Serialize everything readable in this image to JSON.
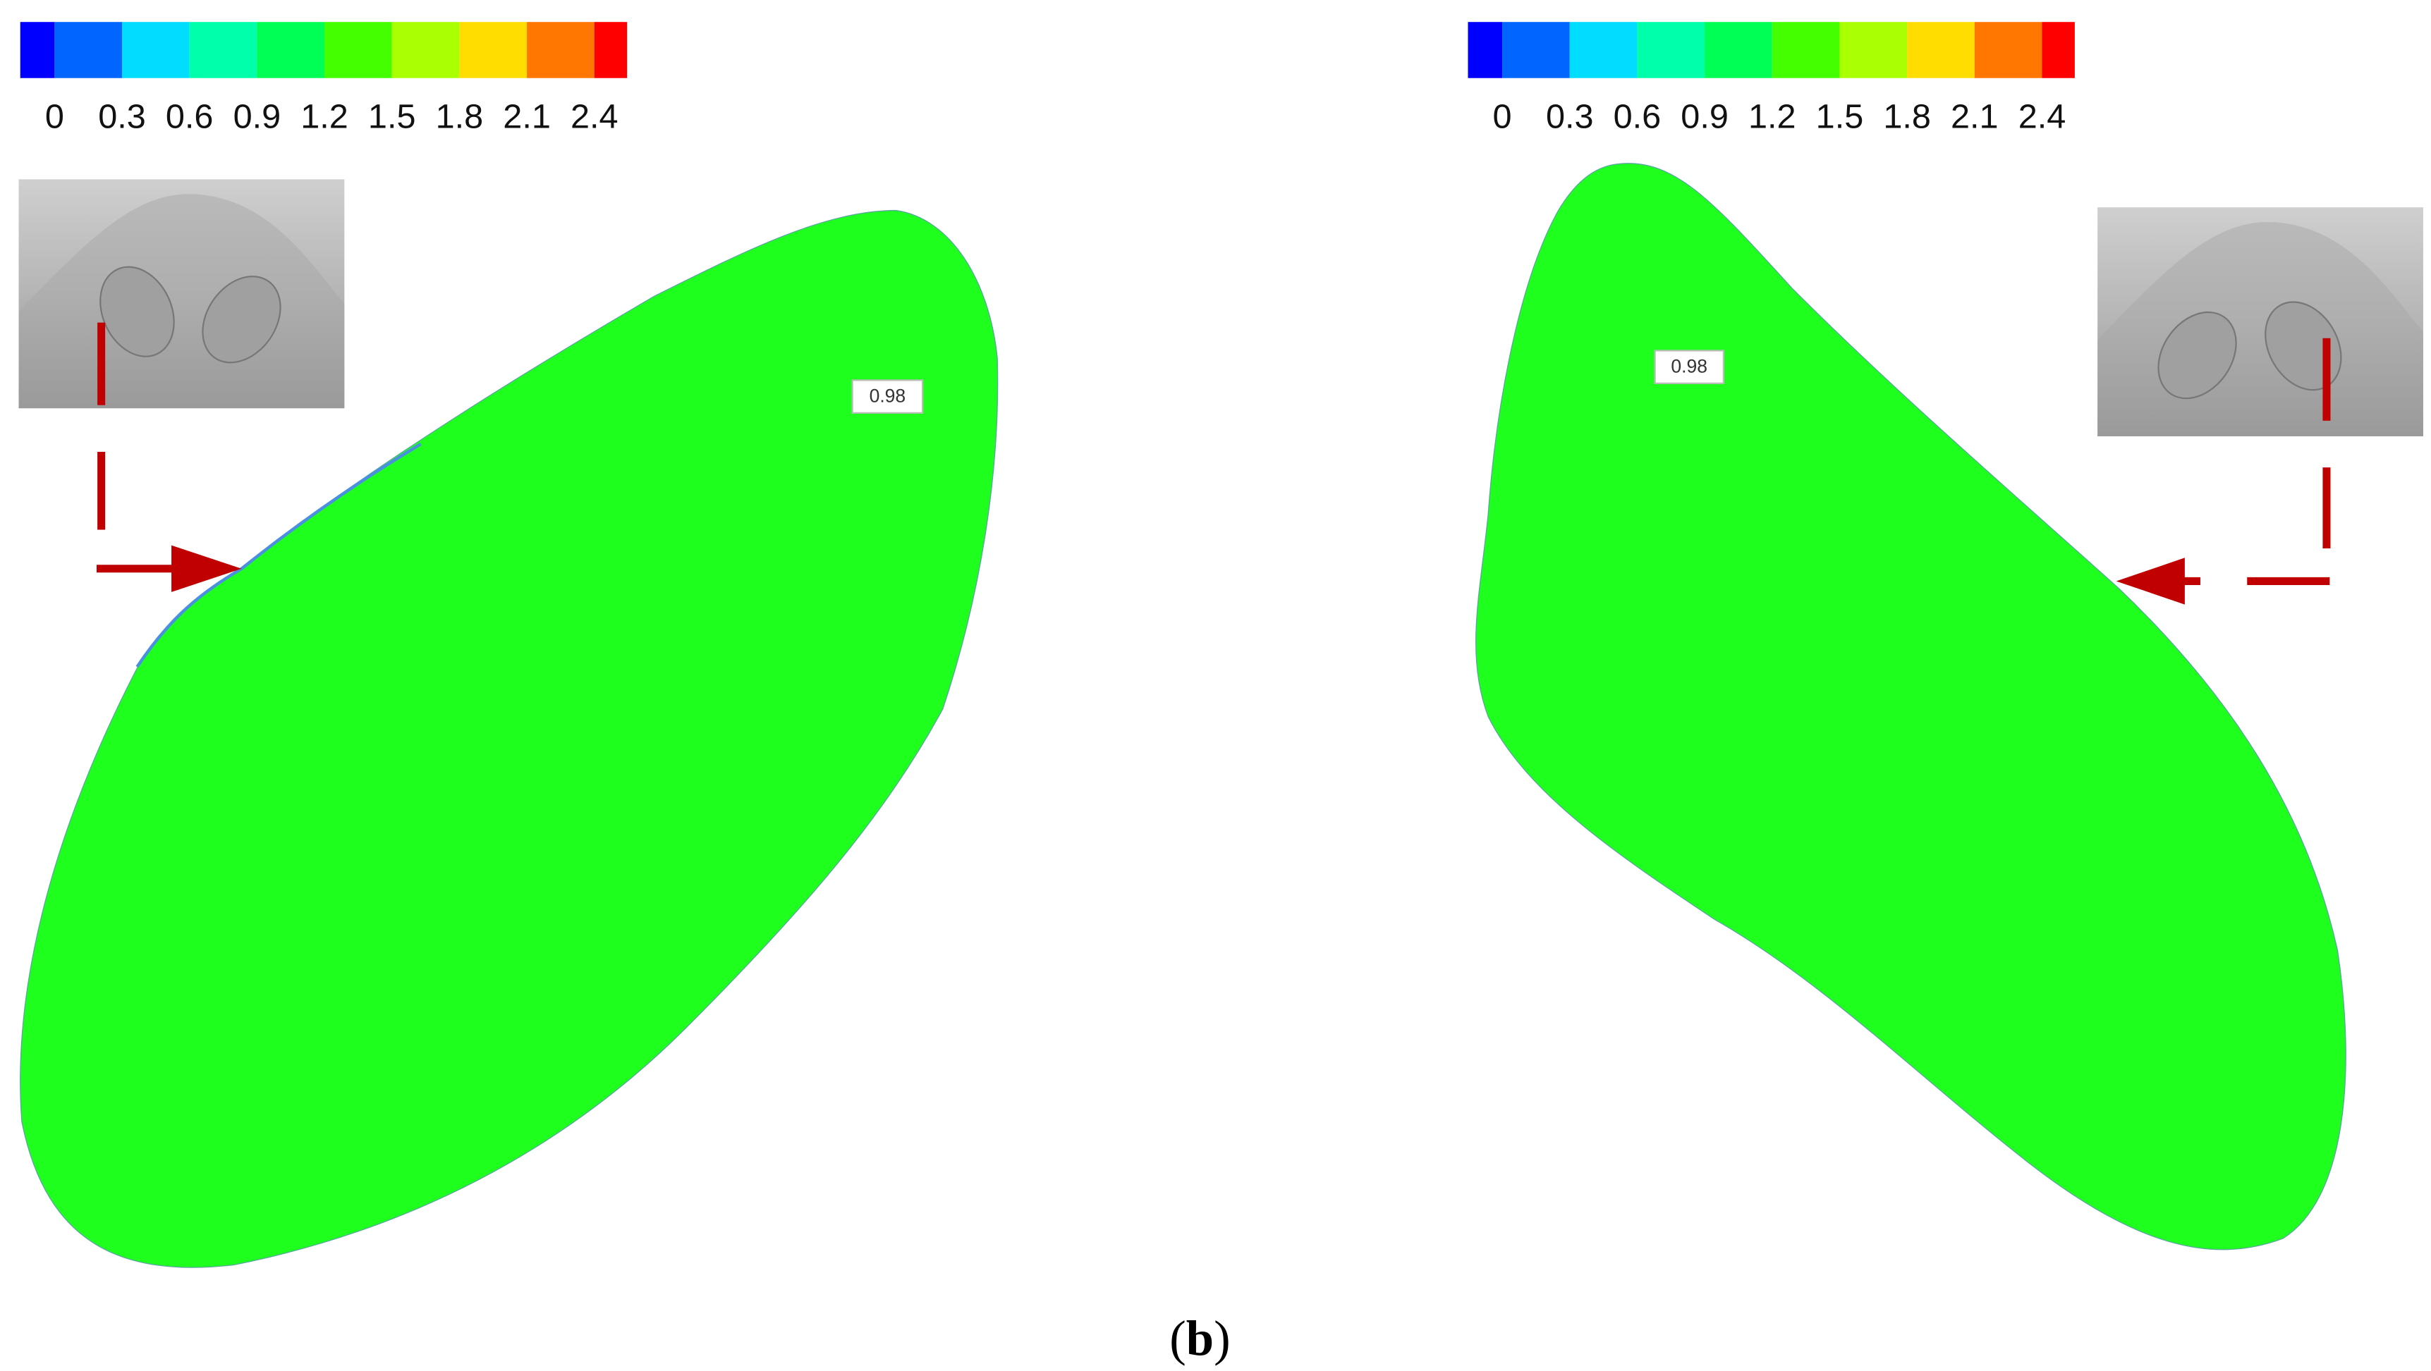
{
  "panels": [
    {
      "colorbar": {
        "ticks": [
          "0",
          "0.3",
          "0.6",
          "0.9",
          "1.2",
          "1.5",
          "1.8",
          "2.1",
          "2.4"
        ]
      },
      "value_label": "0.98"
    },
    {
      "colorbar": {
        "ticks": [
          "0",
          "0.3",
          "0.6",
          "0.9",
          "1.2",
          "1.5",
          "1.8",
          "2.1",
          "2.4"
        ]
      },
      "value_label": "0.98"
    }
  ],
  "caption": [
    "(",
    "b",
    ")"
  ]
}
